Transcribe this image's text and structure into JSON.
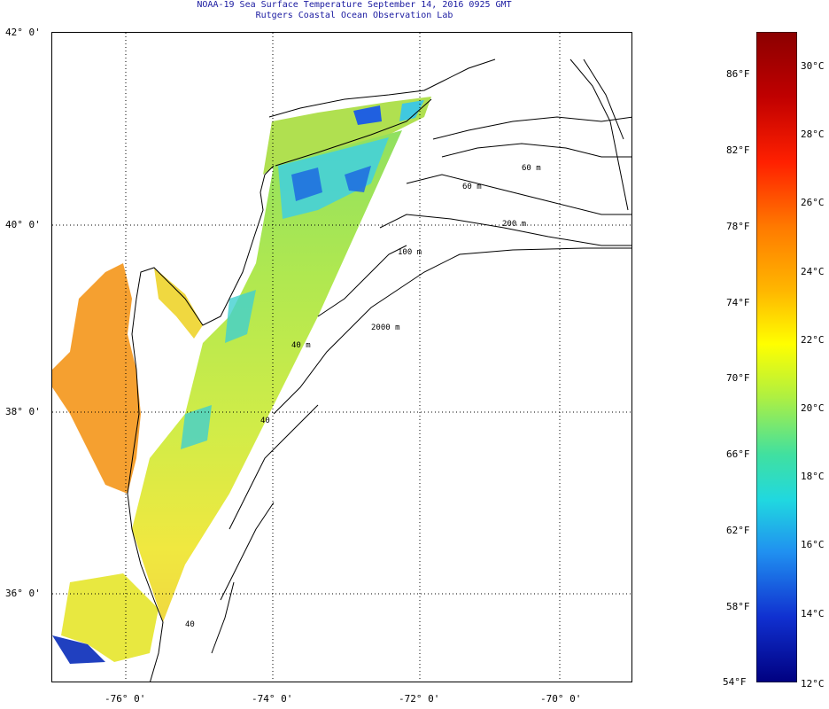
{
  "title_line1": "NOAA-19 Sea Surface Temperature September 14, 2016 0925 GMT",
  "title_line2": "Rutgers Coastal Ocean Observation Lab",
  "latitude_labels": [
    "42° 0'",
    "40° 0'",
    "38° 0'",
    "36° 0'"
  ],
  "longitude_labels": [
    "-76° 0'",
    "-74° 0'",
    "-72° 0'",
    "-70° 0'"
  ],
  "depth_labels": [
    "60 m",
    "60 m",
    "200 m",
    "100 m",
    "2000 m",
    "40 m",
    "40",
    "40"
  ],
  "colorbar": {
    "fahrenheit_labels": [
      "86°F",
      "82°F",
      "78°F",
      "74°F",
      "70°F",
      "66°F",
      "62°F",
      "58°F",
      "54°F"
    ],
    "celsius_labels": [
      "30°C",
      "28°C",
      "26°C",
      "24°C",
      "22°C",
      "20°C",
      "18°C",
      "16°C",
      "14°C",
      "12°C"
    ],
    "colors": [
      "#8b0000",
      "#e00000",
      "#ff6a00",
      "#ffb000",
      "#ffff00",
      "#b8f040",
      "#50e090",
      "#20d8e0",
      "#20a0f0",
      "#2050e0",
      "#1020c0",
      "#000080"
    ]
  },
  "map": {
    "land_color": "#ffffff",
    "water_fill_palette": {
      "warm_bay": "#f5a030",
      "shelf_yellow": "#e8e840",
      "shelf_green": "#a8e050",
      "cool_cyan": "#40d0e0",
      "cold_blue": "#2060e0"
    }
  }
}
